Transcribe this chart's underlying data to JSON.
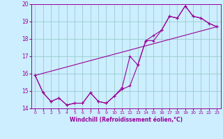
{
  "title": "",
  "xlabel": "Windchill (Refroidissement éolien,°C)",
  "bg_color": "#cceeff",
  "line_color": "#990099",
  "grid_color": "#99cccc",
  "xlim": [
    -0.5,
    23.5
  ],
  "ylim": [
    14,
    20
  ],
  "xticks": [
    0,
    1,
    2,
    3,
    4,
    5,
    6,
    7,
    8,
    9,
    10,
    11,
    12,
    13,
    14,
    15,
    16,
    17,
    18,
    19,
    20,
    21,
    22,
    23
  ],
  "yticks": [
    14,
    15,
    16,
    17,
    18,
    19,
    20
  ],
  "series1_x": [
    0,
    1,
    2,
    3,
    4,
    5,
    6,
    7,
    8,
    9,
    10,
    11,
    12,
    13,
    14,
    15,
    16,
    17,
    18,
    19,
    20,
    21,
    22,
    23
  ],
  "series1_y": [
    15.9,
    14.9,
    14.4,
    14.6,
    14.2,
    14.3,
    14.3,
    14.9,
    14.4,
    14.3,
    14.7,
    15.1,
    15.3,
    16.5,
    17.9,
    17.9,
    18.5,
    19.3,
    19.2,
    19.9,
    19.3,
    19.2,
    18.9,
    18.7
  ],
  "series2_x": [
    0,
    1,
    2,
    3,
    4,
    5,
    6,
    7,
    8,
    9,
    10,
    11,
    12,
    13,
    14,
    15,
    16,
    17,
    18,
    19,
    20,
    21,
    22,
    23
  ],
  "series2_y": [
    15.9,
    14.9,
    14.4,
    14.6,
    14.2,
    14.3,
    14.3,
    14.9,
    14.4,
    14.3,
    14.7,
    15.2,
    17.0,
    16.5,
    17.9,
    18.2,
    18.5,
    19.3,
    19.2,
    19.9,
    19.3,
    19.2,
    18.9,
    18.7
  ],
  "series3_x": [
    0,
    23
  ],
  "series3_y": [
    15.9,
    18.7
  ]
}
